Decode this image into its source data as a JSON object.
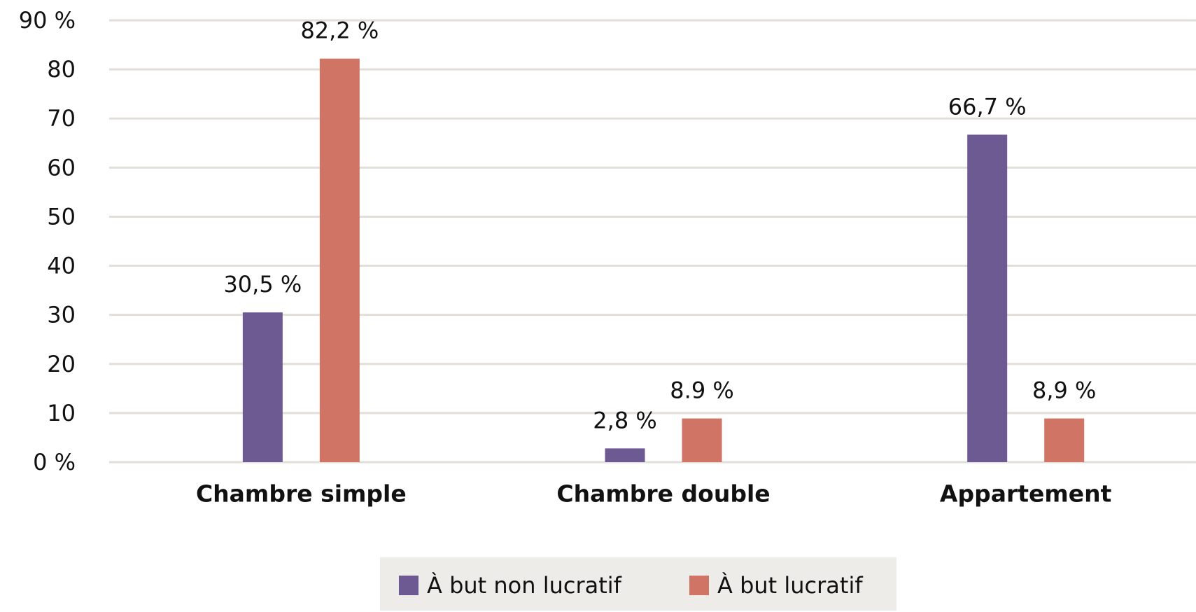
{
  "chart_data": {
    "type": "bar",
    "categories": [
      "Chambre simple",
      "Chambre double",
      "Appartement"
    ],
    "series": [
      {
        "name": "À but non lucratif",
        "color": "#6e5a93",
        "values": [
          30.5,
          2.8,
          66.7
        ],
        "value_labels": [
          "30,5 %",
          "2,8 %",
          "66,7 %"
        ]
      },
      {
        "name": "À but lucratif",
        "color": "#d07565",
        "values": [
          82.2,
          8.9,
          8.9
        ],
        "value_labels": [
          "82,2 %",
          "8.9 %",
          "8,9 %"
        ]
      }
    ],
    "ylim": [
      0,
      90
    ],
    "yticks": [
      {
        "value": 0,
        "label": "0 %"
      },
      10,
      20,
      30,
      40,
      50,
      60,
      70,
      80,
      {
        "value": 90,
        "label": "90 %"
      }
    ],
    "grid": true,
    "legend": "bottom"
  }
}
